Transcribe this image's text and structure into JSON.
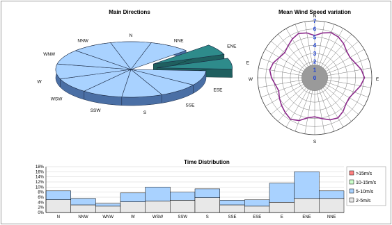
{
  "chart_data": [
    {
      "type": "pie",
      "title": "Main Directions",
      "categories": [
        "N",
        "NNE",
        "ENE",
        "E",
        "ESE",
        "SSE",
        "S",
        "SSW",
        "WSW",
        "W",
        "WNW",
        "NNW"
      ],
      "values": [
        8.3,
        8.3,
        6.0,
        6.0,
        8.3,
        8.3,
        8.3,
        8.3,
        8.3,
        8.3,
        8.3,
        8.3
      ],
      "exploded": [
        "ENE",
        "E"
      ],
      "colors": {
        "main": "#a9d2ff",
        "exploded": "#2e8b8b",
        "side": "#4a6fa5"
      }
    },
    {
      "type": "radar",
      "title": "Mean Wind Speed variation",
      "direction_labels": [
        "N",
        "E",
        "S",
        "W"
      ],
      "r_ticks": [
        "0",
        "1",
        "2",
        "3",
        "4",
        "5",
        "6",
        "7"
      ],
      "series_color": "#8b2a8b",
      "values": [
        5.2,
        5.6,
        5.9,
        5.8,
        5.5,
        5.1,
        5.0,
        5.3,
        5.8,
        6.1,
        5.7,
        5.2,
        4.9,
        5.0,
        5.4,
        5.7,
        5.5,
        5.1,
        4.8,
        5.0,
        5.6,
        5.9,
        5.6,
        5.3,
        5.0,
        4.7,
        4.9,
        5.3,
        5.6,
        5.4,
        5.0,
        4.8,
        5.1,
        5.5,
        5.8,
        5.6
      ]
    },
    {
      "type": "bar",
      "stacked": true,
      "title": "Time Distribution",
      "categories": [
        "N",
        "NNW",
        "WNW",
        "W",
        "WSW",
        "SSW",
        "S",
        "SSE",
        "ESE",
        "E",
        "ENE",
        "NNE"
      ],
      "yticks": [
        "0%",
        "2%",
        "4%",
        "6%",
        "8%",
        "10%",
        "12%",
        "14%",
        "16%",
        "18%"
      ],
      "ylim": [
        0,
        18
      ],
      "series": [
        {
          "name": "2-5m/s",
          "color": "#e8e8e8",
          "values": [
            5.0,
            3.0,
            2.5,
            4.2,
            4.5,
            4.8,
            5.8,
            3.0,
            2.5,
            4.0,
            5.5,
            5.5
          ]
        },
        {
          "name": "5-10m/s",
          "color": "#a9d2ff",
          "values": [
            3.5,
            2.5,
            1.0,
            3.5,
            5.5,
            3.2,
            3.5,
            1.8,
            2.5,
            7.5,
            10.5,
            3.0
          ]
        },
        {
          "name": "10-15m/s",
          "color": "#ccffcc",
          "values": [
            0.0,
            0.0,
            0.0,
            0.0,
            0.0,
            0.0,
            0.0,
            0.0,
            0.0,
            0.0,
            0.0,
            0.0
          ]
        },
        {
          "name": ">15m/s",
          "color": "#ff8080",
          "values": [
            0.0,
            0.0,
            0.0,
            0.0,
            0.0,
            0.0,
            0.0,
            0.0,
            0.0,
            0.0,
            0.0,
            0.0
          ]
        }
      ],
      "legend": [
        ">15m/s",
        "10-15m/s",
        "5-10m/s",
        "2-5m/s"
      ]
    }
  ]
}
